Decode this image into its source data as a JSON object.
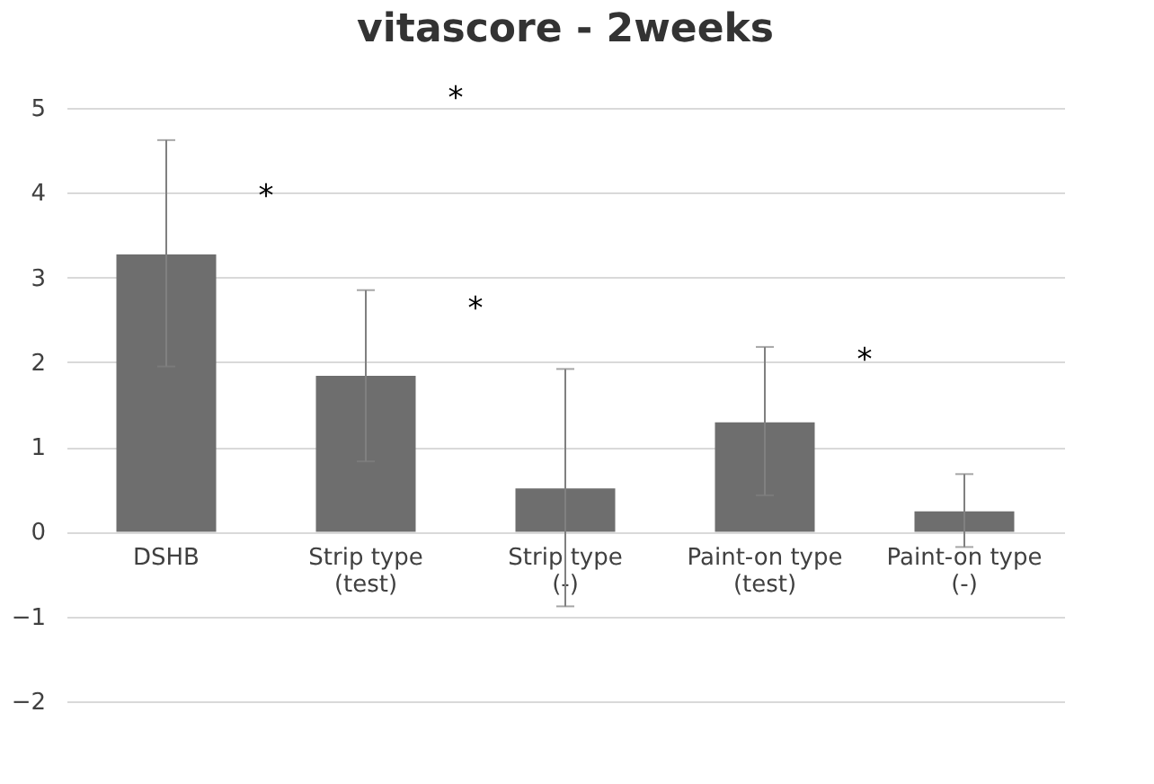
{
  "chart_data": {
    "type": "bar",
    "title": "vitascore - 2weeks",
    "categories": [
      "DSHB",
      "Strip type\n(test)",
      "Strip type\n(-)",
      "Paint-on type\n(test)",
      "Paint-on type\n(-)"
    ],
    "values": [
      3.27,
      1.84,
      0.51,
      1.29,
      0.24
    ],
    "errors": [
      [
        1.95,
        4.62
      ],
      [
        0.83,
        2.85
      ],
      [
        -0.88,
        1.92
      ],
      [
        0.43,
        2.18
      ],
      [
        -0.18,
        0.68
      ]
    ],
    "color": "#6e6e6e",
    "ylim": [
      -2,
      5
    ],
    "yticks": [
      -2,
      -1,
      0,
      1,
      2,
      3,
      4,
      5
    ],
    "grid": "y",
    "annotations": [
      "*",
      "*",
      "*",
      "*"
    ]
  }
}
